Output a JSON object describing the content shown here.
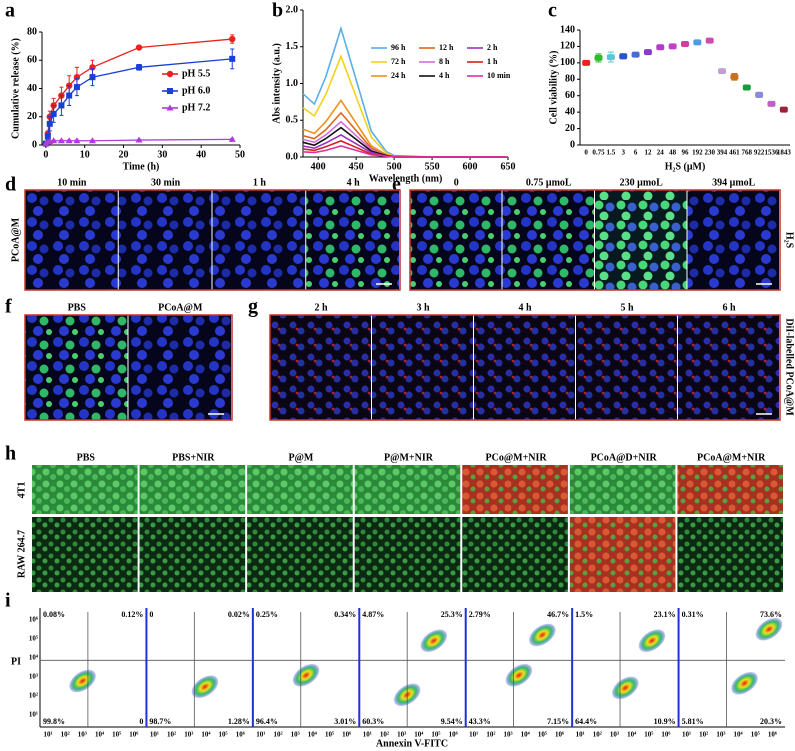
{
  "chart_data": [
    {
      "type": "line",
      "xlabel": "Time (h)",
      "ylabel": "Cumulative release (%)",
      "x": [
        0,
        0.5,
        1,
        2,
        4,
        6,
        8,
        12,
        24,
        48
      ],
      "xlim": [
        -1,
        50
      ],
      "xticks": [
        0,
        10,
        20,
        30,
        40,
        50
      ],
      "ylim": [
        0,
        80
      ],
      "yticks": [
        0,
        20,
        40,
        60,
        80
      ],
      "legend": "center right",
      "series": [
        {
          "name": "pH 5.5",
          "color": "#e8231f",
          "marker": "circle",
          "values": [
            1,
            8,
            20,
            28,
            35,
            42,
            48,
            55,
            69,
            75
          ],
          "errors": [
            0,
            2,
            4,
            5,
            6,
            7,
            7,
            5,
            1,
            3
          ]
        },
        {
          "name": "pH 6.0",
          "color": "#1a3fd4",
          "marker": "square",
          "values": [
            1,
            6,
            15,
            22,
            28,
            35,
            41,
            48,
            55,
            61
          ],
          "errors": [
            0,
            2,
            5,
            6,
            7,
            7,
            6,
            6,
            2,
            7
          ]
        },
        {
          "name": "pH 7.2",
          "color": "#b13bd8",
          "marker": "triangle",
          "values": [
            1,
            2,
            2.5,
            3,
            3,
            3,
            3,
            3,
            3.5,
            4
          ],
          "errors": [
            0,
            0.5,
            0.5,
            0.5,
            0.5,
            0.5,
            0.5,
            0.5,
            0.5,
            0.5
          ]
        }
      ]
    },
    {
      "type": "line",
      "xlabel": "Wavelength (nm)",
      "ylabel": "Abs intensity (a.u.)",
      "x": [
        380,
        395,
        410,
        430,
        450,
        470,
        490,
        500,
        550,
        600,
        650
      ],
      "xlim": [
        380,
        650
      ],
      "xticks": [
        400,
        450,
        500,
        550,
        600,
        650
      ],
      "ylim": [
        0,
        2
      ],
      "yticks": [
        {
          "value": 0,
          "label": "0.0"
        },
        {
          "value": 0.5,
          "label": "0.5"
        },
        {
          "value": 1,
          "label": "1.0"
        },
        {
          "value": 1.5,
          "label": "1.5"
        },
        {
          "value": 2,
          "label": "2.0"
        }
      ],
      "legend": "upper right",
      "series": [
        {
          "name": "96 h",
          "color": "#5aaee8",
          "values": [
            0.86,
            0.72,
            1.09,
            1.75,
            1.05,
            0.35,
            0.07,
            0.02,
            0,
            0,
            0
          ]
        },
        {
          "name": "72 h",
          "color": "#f2d21a",
          "values": [
            0.67,
            0.56,
            0.85,
            1.37,
            0.82,
            0.27,
            0.05,
            0.01,
            0,
            0,
            0
          ]
        },
        {
          "name": "24 h",
          "color": "#f0901c",
          "values": [
            0.38,
            0.32,
            0.48,
            0.77,
            0.46,
            0.15,
            0.03,
            0.01,
            0,
            0,
            0
          ]
        },
        {
          "name": "12 h",
          "color": "#e0641c",
          "values": [
            0.29,
            0.25,
            0.37,
            0.6,
            0.36,
            0.12,
            0.02,
            0.01,
            0,
            0,
            0
          ]
        },
        {
          "name": "8 h",
          "color": "#d070d8",
          "values": [
            0.24,
            0.2,
            0.3,
            0.48,
            0.29,
            0.1,
            0.02,
            0,
            0,
            0,
            0
          ]
        },
        {
          "name": "4 h",
          "color": "#111111",
          "values": [
            0.2,
            0.16,
            0.25,
            0.4,
            0.24,
            0.08,
            0.02,
            0,
            0,
            0,
            0
          ]
        },
        {
          "name": "2 h",
          "color": "#a030c0",
          "values": [
            0.15,
            0.12,
            0.19,
            0.3,
            0.18,
            0.06,
            0.01,
            0,
            0,
            0,
            0
          ]
        },
        {
          "name": "1 h",
          "color": "#d02020",
          "values": [
            0.11,
            0.09,
            0.14,
            0.22,
            0.13,
            0.04,
            0.01,
            0,
            0,
            0,
            0
          ]
        },
        {
          "name": "10 min",
          "color": "#e030a0",
          "values": [
            0.07,
            0.06,
            0.09,
            0.15,
            0.09,
            0.03,
            0.01,
            0,
            0,
            0,
            0
          ]
        }
      ]
    },
    {
      "type": "dot",
      "xlabel": "H₂S (μM)",
      "ylabel": "Cell viability (%)",
      "categories": [
        "0",
        "0.75",
        "1.5",
        "3",
        "6",
        "12",
        "24",
        "48",
        "96",
        "192",
        "230",
        "394",
        "461",
        "768",
        "922",
        "1536",
        "1843"
      ],
      "values": [
        100,
        106,
        107,
        108,
        110,
        113,
        119,
        120,
        123,
        125,
        127,
        90,
        83,
        70,
        61,
        50,
        43
      ],
      "errors": [
        1,
        5,
        6,
        3,
        2,
        2,
        2,
        2,
        2,
        1,
        1,
        1,
        4,
        2,
        3,
        2,
        1
      ],
      "colors": [
        "#e8231f",
        "#2bbb2b",
        "#58c8d8",
        "#2a54c8",
        "#4a6ad8",
        "#8a3ad0",
        "#b43ac8",
        "#c040c8",
        "#d040a0",
        "#4f9be0",
        "#d04ab0",
        "#c0a0d0",
        "#c8701c",
        "#1a9a3a",
        "#8a8ad8",
        "#c060c0",
        "#a0203a"
      ],
      "ylim": [
        0,
        140
      ],
      "yticks": [
        0,
        20,
        40,
        60,
        80,
        100,
        120,
        140
      ]
    }
  ],
  "panels": {
    "letters": [
      "a",
      "b",
      "c",
      "d",
      "e",
      "f",
      "g",
      "h",
      "i"
    ],
    "d": {
      "labels": [
        "10 min",
        "30 min",
        "1 h",
        "4 h"
      ],
      "side": "PCoA@M"
    },
    "e": {
      "labels": [
        "0",
        "0.75 μmoL",
        "230 μmoL",
        "394 μmoL"
      ],
      "side": "H₂S"
    },
    "f": {
      "labels": [
        "PBS",
        "PCoA@M"
      ]
    },
    "g": {
      "labels": [
        "2 h",
        "3 h",
        "4 h",
        "5 h",
        "6 h"
      ],
      "side": "DiI-labelled PCoA@M"
    },
    "h": {
      "labels": [
        "PBS",
        "PBS+NIR",
        "P@M",
        "P@M+NIR",
        "PCo@M+NIR",
        "PCoA@D+NIR",
        "PCoA@M+NIR"
      ],
      "rows": [
        "4T1",
        "RAW 264.7"
      ]
    },
    "i": {
      "quadrants": [
        [
          "0.08%",
          "0.12%",
          "99.8%",
          "0"
        ],
        [
          "0",
          "0.02%",
          "98.7%",
          "1.28%"
        ],
        [
          "0.25%",
          "0.34%",
          "96.4%",
          "3.01%"
        ],
        [
          "4.87%",
          "25.3%",
          "60.3%",
          "9.54%"
        ],
        [
          "2.79%",
          "46.7%",
          "43.3%",
          "7.15%"
        ],
        [
          "1.5%",
          "23.1%",
          "64.4%",
          "10.9%"
        ],
        [
          "0.31%",
          "73.6%",
          "5.81%",
          "20.3%"
        ]
      ],
      "ticks": [
        "10¹",
        "10²",
        "10³",
        "10⁴",
        "10⁵",
        "10⁶"
      ],
      "xlabel": "Annexin V-FITC",
      "ylabel": "PI"
    }
  }
}
